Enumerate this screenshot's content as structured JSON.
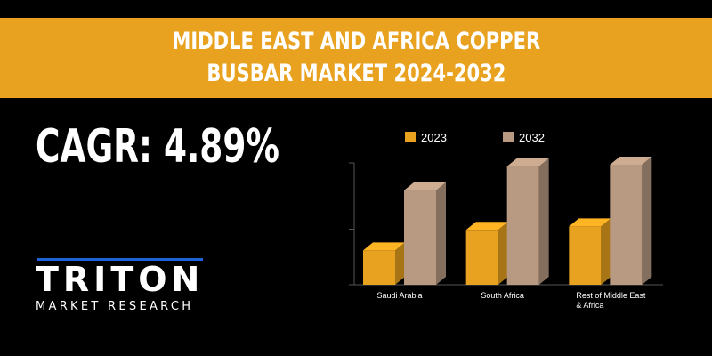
{
  "banner": {
    "line1": "MIDDLE EAST AND AFRICA COPPER",
    "line2": "BUSBAR MARKET 2024-2032"
  },
  "cagr": {
    "text": "CAGR: 4.89%"
  },
  "logo": {
    "word": "TRITON",
    "subtitle": "MARKET RESEARCH"
  },
  "chart_data": {
    "type": "bar",
    "categories": [
      "Saudi Arabia",
      "South Africa",
      "Rest of Middle East & Africa"
    ],
    "category_label_lines": [
      [
        "Saudi Arabia"
      ],
      [
        "South Africa"
      ],
      [
        "Rest of Middle East",
        "& Africa"
      ]
    ],
    "series": [
      {
        "name": "2023",
        "values": [
          1.0,
          1.6,
          1.7
        ],
        "color": "#e8a21f"
      },
      {
        "name": "2032",
        "values": [
          2.75,
          3.45,
          3.5
        ],
        "color": "#b89a82"
      }
    ],
    "ylim": [
      0,
      3.5
    ],
    "grid": false,
    "legend": "top",
    "bar_style": "3d"
  }
}
